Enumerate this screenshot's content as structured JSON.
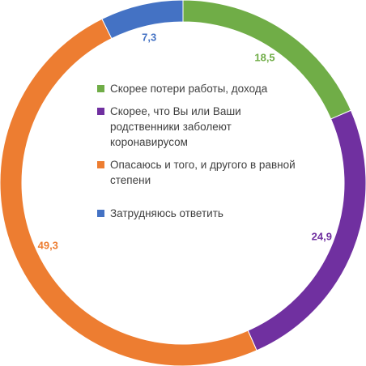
{
  "chart_data": {
    "type": "pie",
    "style": "donut",
    "categories": [
      "Скорее потери работы, дохода",
      "Скорее, что Вы или Ваши родственники заболеют коронавирусом",
      "Опасаюсь и того, и другого в равной степени",
      "Затрудняюсь ответить"
    ],
    "values": [
      18.5,
      24.9,
      49.3,
      7.3
    ],
    "value_labels": [
      "18,5",
      "24,9",
      "49,3",
      "7,3"
    ],
    "colors": [
      "#70ad47",
      "#7030a0",
      "#ed7d31",
      "#4472c4"
    ],
    "legend_placement": "center"
  }
}
